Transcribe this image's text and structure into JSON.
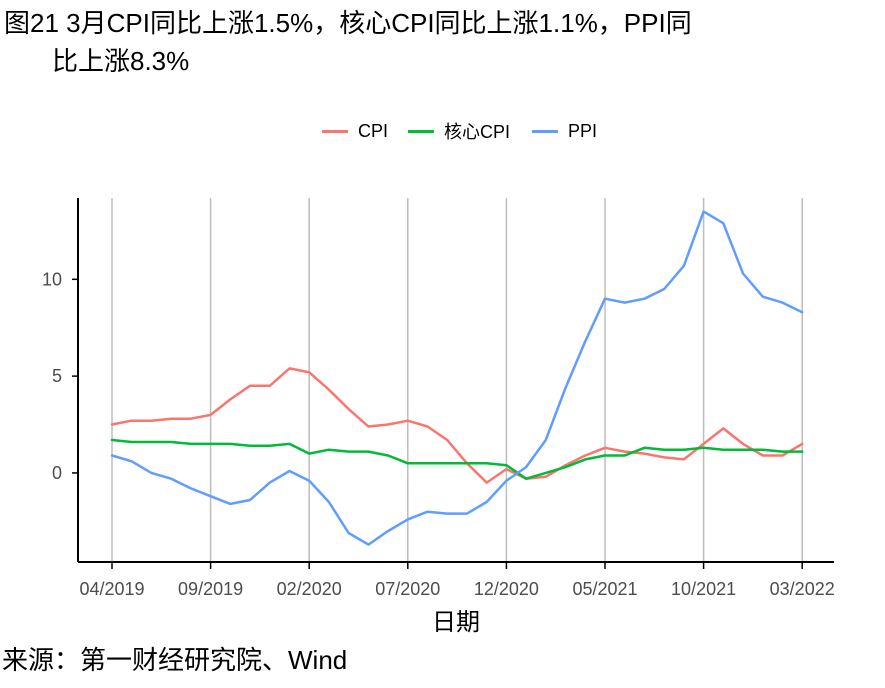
{
  "title": {
    "line1": "图21 3月CPI同比上涨1.5%，核心CPI同比上涨1.1%，PPI同",
    "line2": "比上涨8.3%"
  },
  "source": "来源：第一财经研究院、Wind",
  "chart_data": {
    "type": "line",
    "xlabel": "日期",
    "ylabel": "",
    "x": [
      "04/2019",
      "05/2019",
      "06/2019",
      "07/2019",
      "08/2019",
      "09/2019",
      "10/2019",
      "11/2019",
      "12/2019",
      "01/2020",
      "02/2020",
      "03/2020",
      "04/2020",
      "05/2020",
      "06/2020",
      "07/2020",
      "08/2020",
      "09/2020",
      "10/2020",
      "11/2020",
      "12/2020",
      "01/2021",
      "02/2021",
      "03/2021",
      "04/2021",
      "05/2021",
      "06/2021",
      "07/2021",
      "08/2021",
      "09/2021",
      "10/2021",
      "11/2021",
      "12/2021",
      "01/2022",
      "02/2022",
      "03/2022"
    ],
    "x_tick_labels": [
      "04/2019",
      "09/2019",
      "02/2020",
      "07/2020",
      "12/2020",
      "05/2021",
      "10/2021",
      "03/2022"
    ],
    "x_tick_indices": [
      0,
      5,
      10,
      15,
      20,
      25,
      30,
      35
    ],
    "y_ticks": [
      0,
      5,
      10
    ],
    "ylim": [
      -4.6,
      14.2
    ],
    "grid": "vertical",
    "legend_position": "top",
    "series": [
      {
        "name": "CPI",
        "color": "#F8766D",
        "values": [
          2.5,
          2.7,
          2.7,
          2.8,
          2.8,
          3.0,
          3.8,
          4.5,
          4.5,
          5.4,
          5.2,
          4.3,
          3.3,
          2.4,
          2.5,
          2.7,
          2.4,
          1.7,
          0.5,
          -0.5,
          0.2,
          -0.3,
          -0.2,
          0.4,
          0.9,
          1.3,
          1.1,
          1.0,
          0.8,
          0.7,
          1.5,
          2.3,
          1.5,
          0.9,
          0.9,
          1.5
        ]
      },
      {
        "name": "核心CPI",
        "color": "#00BA38",
        "values": [
          1.7,
          1.6,
          1.6,
          1.6,
          1.5,
          1.5,
          1.5,
          1.4,
          1.4,
          1.5,
          1.0,
          1.2,
          1.1,
          1.1,
          0.9,
          0.5,
          0.5,
          0.5,
          0.5,
          0.5,
          0.4,
          -0.3,
          0.0,
          0.3,
          0.7,
          0.9,
          0.9,
          1.3,
          1.2,
          1.2,
          1.3,
          1.2,
          1.2,
          1.2,
          1.1,
          1.1
        ]
      },
      {
        "name": "PPI",
        "color": "#619CFF",
        "values": [
          0.9,
          0.6,
          0.0,
          -0.3,
          -0.8,
          -1.2,
          -1.6,
          -1.4,
          -0.5,
          0.1,
          -0.4,
          -1.5,
          -3.1,
          -3.7,
          -3.0,
          -2.4,
          -2.0,
          -2.1,
          -2.1,
          -1.5,
          -0.4,
          0.3,
          1.7,
          4.4,
          6.8,
          9.0,
          8.8,
          9.0,
          9.5,
          10.7,
          13.5,
          12.9,
          10.3,
          9.1,
          8.8,
          8.3
        ]
      }
    ]
  }
}
